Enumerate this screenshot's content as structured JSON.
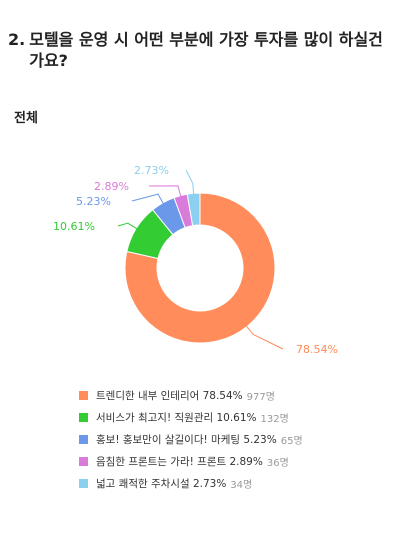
{
  "survey": {
    "question_number": "2.",
    "question_text": "모텔을 운영 시 어떤 부분에 가장 투자를 많이 하실건가요?",
    "group_label": "전체"
  },
  "chart_data": {
    "type": "pie",
    "style": "donut",
    "legend_position": "bottom",
    "categories": [
      "트렌디한 내부 인테리어",
      "서비스가 최고지! 직원관리",
      "홍보! 홍보만이 살길이다! 마케팅",
      "음침한 프론트는 가라! 프론트",
      "넓고 쾌적한 주차시설"
    ],
    "values": [
      78.54,
      10.61,
      5.23,
      2.89,
      2.73
    ],
    "value_labels": [
      "78.54%",
      "10.61%",
      "5.23%",
      "2.89%",
      "2.73%"
    ],
    "legend_values": [
      "78.54%",
      "10.61%",
      "5.23%",
      "2.89%",
      "2.73%"
    ],
    "counts": [
      "977명",
      "132명",
      "65명",
      "36명",
      "34명"
    ],
    "colors": [
      "#FF8C5A",
      "#33CC33",
      "#6B98E8",
      "#D97BDB",
      "#8CCFF0"
    ]
  }
}
